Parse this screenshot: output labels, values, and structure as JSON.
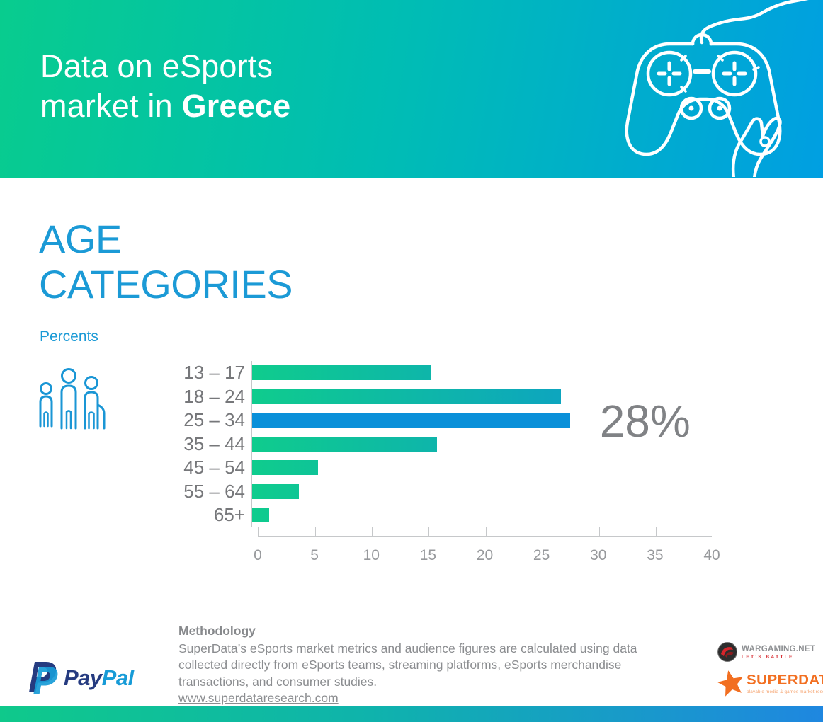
{
  "header": {
    "title_line1": "Data on eSports",
    "title_line2": "market in ",
    "title_line2_bold": "Greece",
    "gradient_start": "#08cc8e",
    "gradient_end": "#009fe2"
  },
  "section": {
    "title_line1": "AGE",
    "title_line2": "CATEGORIES",
    "subtitle": "Percents",
    "accent_color": "#1b9ad6"
  },
  "chart_data": {
    "type": "bar",
    "orientation": "horizontal",
    "title": "AGE CATEGORIES",
    "units": "Percents",
    "categories": [
      "13 – 17",
      "18 – 24",
      "25 – 34",
      "35 – 44",
      "45 – 54",
      "55 – 64",
      "65+"
    ],
    "values": [
      15.7,
      27.2,
      28,
      16.3,
      5.8,
      4.1,
      1.5
    ],
    "highlight_index": 2,
    "highlight_label": "28%",
    "xlim": [
      0,
      40
    ],
    "x_ticks": [
      "0",
      "5",
      "10",
      "15",
      "20",
      "25",
      "30",
      "35",
      "40"
    ],
    "grid": false,
    "legend": "none",
    "bar_gradient_start": "#0fcc8d",
    "bar_gradient_end": "#0c93d6",
    "highlight_color": "#0a90d9",
    "label_color": "#76777a",
    "axis_color": "#c6c8ca"
  },
  "methodology": {
    "heading": "Methodology",
    "body": "SuperData’s eSports market metrics and audience figures are calculated using data collected directly from eSports teams, streaming platforms, eSports merchandise transactions, and consumer studies.",
    "link": "www.superdataresearch.com"
  },
  "footer": {
    "paypal_pay": "Pay",
    "paypal_pal": "Pal",
    "wargaming_name": "WARGAMING.NET",
    "wargaming_tagline": "LET'S BATTLE",
    "superdata_name": "SUPERDATA",
    "superdata_tagline": "playable media & games market research"
  }
}
